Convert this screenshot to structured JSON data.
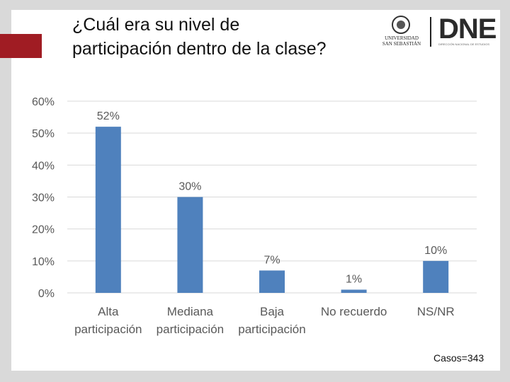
{
  "title": "¿Cuál era su nivel de participación dentro de la clase?",
  "logos": {
    "university": "UNIVERSIDAD SAN SEBASTIÁN",
    "dne": "DNE",
    "dne_subtitle": "DIRECCIÓN NACIONAL DE ESTUDIOS"
  },
  "colors": {
    "bar": "#4f81bd",
    "accent_red": "#a01c23",
    "grid": "#d9d9d9",
    "text": "#595959"
  },
  "chart_data": {
    "type": "bar",
    "title": "¿Cuál era su nivel de participación dentro de la clase?",
    "categories": [
      [
        "Alta",
        "participación"
      ],
      [
        "Mediana",
        "participación"
      ],
      [
        "Baja",
        "participación"
      ],
      [
        "No recuerdo"
      ],
      [
        "NS/NR"
      ]
    ],
    "values": [
      52,
      30,
      7,
      1,
      10
    ],
    "value_labels": [
      "52%",
      "30%",
      "7%",
      "1%",
      "10%"
    ],
    "yticks": [
      "0%",
      "10%",
      "20%",
      "30%",
      "40%",
      "50%",
      "60%"
    ],
    "ylim": [
      0,
      60
    ],
    "grid": true,
    "xlabel": "",
    "ylabel": ""
  },
  "footer": {
    "cases": "Casos=343"
  }
}
